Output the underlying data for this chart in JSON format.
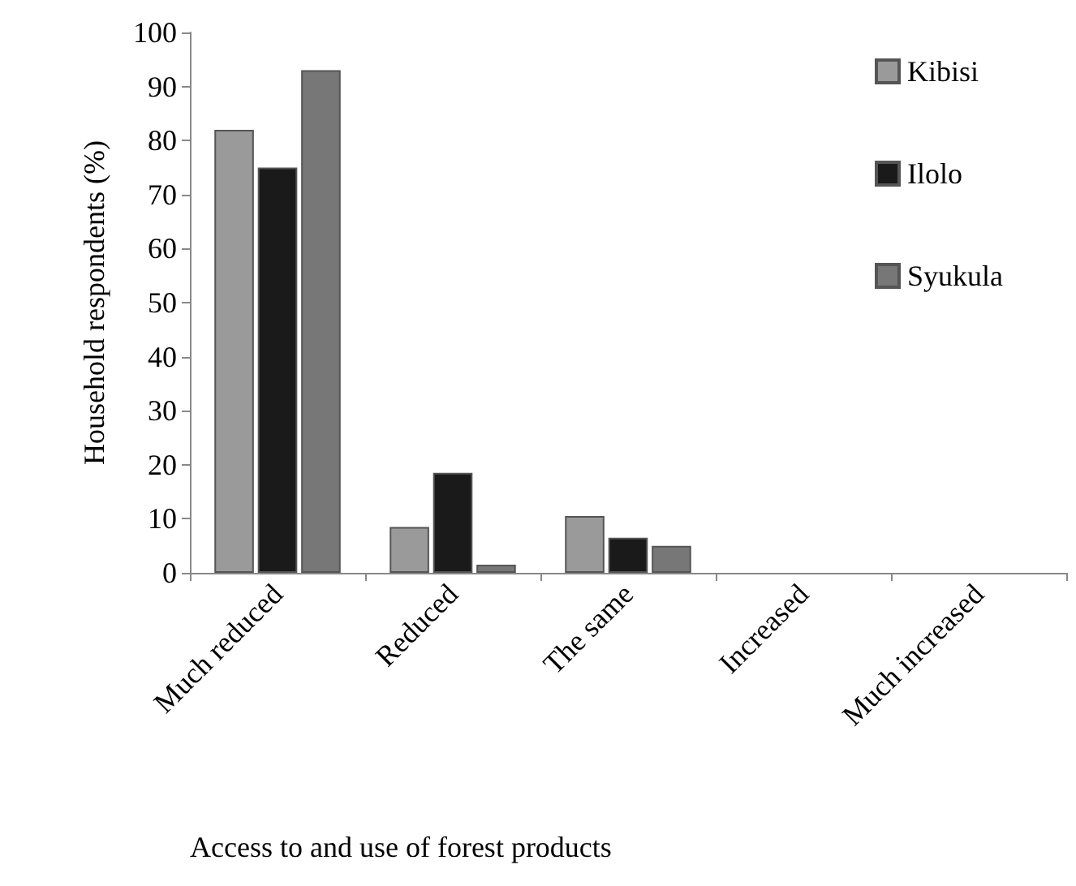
{
  "chart_data": {
    "type": "bar",
    "xlabel": "Access to and use of forest products",
    "ylabel": "Household respondents (%)",
    "categories": [
      "Much reduced",
      "Reduced",
      "The same",
      "Increased",
      "Much increased"
    ],
    "series": [
      {
        "name": "Kibisi",
        "color": "#9a9a9a",
        "values": [
          82,
          8.5,
          10.5,
          0,
          0
        ]
      },
      {
        "name": "Ilolo",
        "color": "#1a1a1a",
        "values": [
          75,
          18.5,
          6.5,
          0,
          0
        ]
      },
      {
        "name": "Syukula",
        "color": "#777777",
        "values": [
          93,
          1.5,
          5,
          0,
          0
        ]
      }
    ],
    "ylim": [
      0,
      100
    ],
    "yticks": [
      0,
      10,
      20,
      30,
      40,
      50,
      60,
      70,
      80,
      90,
      100
    ],
    "grid": false,
    "legend": "top right"
  }
}
